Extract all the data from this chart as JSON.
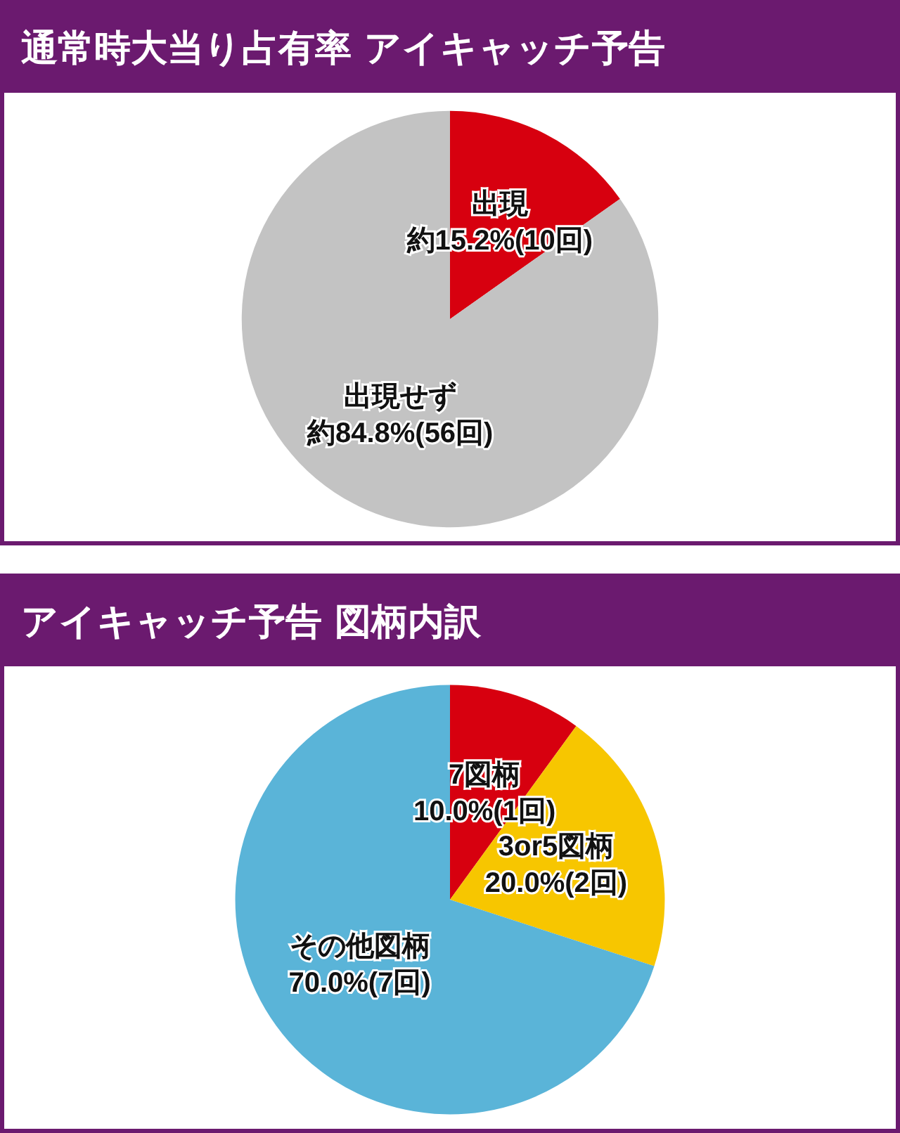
{
  "chart_data": [
    {
      "type": "pie",
      "title": "通常時大当り占有率 アイキャッチ予告",
      "categories": [
        "出現",
        "出現せず"
      ],
      "values": [
        15.2,
        84.8
      ],
      "colors": [
        "#d7000f",
        "#c3c3c3"
      ],
      "value_labels": [
        "約15.2%(10回)",
        "約84.8%(56回)"
      ]
    },
    {
      "type": "pie",
      "title": "アイキャッチ予告 図柄内訳",
      "categories": [
        "7図柄",
        "3or5図柄",
        "その他図柄"
      ],
      "values": [
        10.0,
        20.0,
        70.0
      ],
      "colors": [
        "#d7000f",
        "#f7c600",
        "#5ab4d8"
      ],
      "value_labels": [
        "10.0%(1回)",
        "20.0%(2回)",
        "70.0%(7回)"
      ]
    }
  ]
}
